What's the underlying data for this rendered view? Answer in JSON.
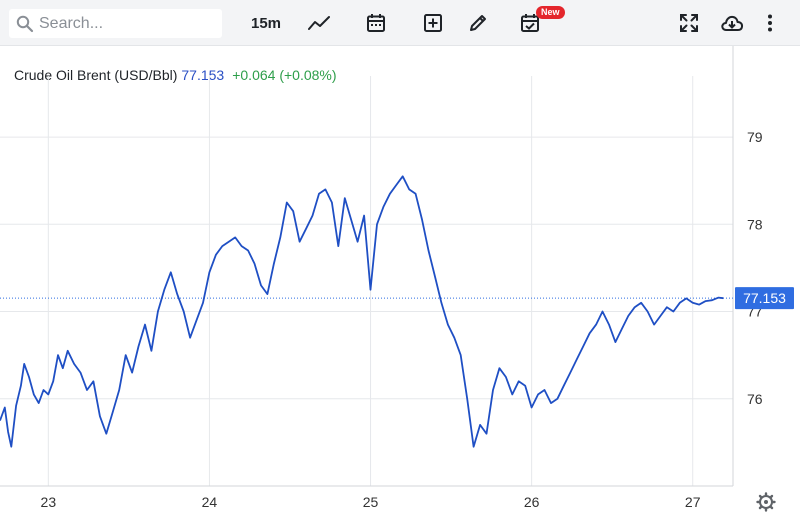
{
  "toolbar": {
    "search_placeholder": "Search...",
    "interval": "15m",
    "new_badge": "New",
    "icons": [
      "search-icon",
      "line-chart-icon",
      "calendar-icon",
      "add-box-icon",
      "pencil-icon",
      "calendar-check-icon",
      "fullscreen-icon",
      "cloud-download-icon",
      "more-vertical-icon"
    ]
  },
  "legend": {
    "symbol": "Crude Oil Brent (USD/Bbl)",
    "price": "77.153",
    "change": "+0.064 (+0.08%)"
  },
  "colors": {
    "line": "#1f4fc4",
    "price_tag": "#2f6de1",
    "change": "#2e9e4a",
    "grid": "#e6e8eb"
  },
  "chart_data": {
    "type": "line",
    "title": "Crude Oil Brent (USD/Bbl)",
    "xlabel": "",
    "ylabel": "",
    "ylim": [
      75.0,
      79.7
    ],
    "xlim": [
      22.7,
      27.25
    ],
    "grid": true,
    "y_axis_position": "right",
    "x_ticks": [
      {
        "value": 23,
        "label": "23"
      },
      {
        "value": 24,
        "label": "24"
      },
      {
        "value": 25,
        "label": "25"
      },
      {
        "value": 26,
        "label": "26"
      },
      {
        "value": 27,
        "label": "27"
      }
    ],
    "y_ticks": [
      {
        "value": 76,
        "label": "76"
      },
      {
        "value": 77,
        "label": "77"
      },
      {
        "value": 78,
        "label": "78"
      },
      {
        "value": 79,
        "label": "79"
      }
    ],
    "last_price": {
      "value": 77.153,
      "label": "77.153"
    },
    "series": [
      {
        "name": "Crude Oil Brent",
        "x": [
          22.7,
          22.73,
          22.75,
          22.77,
          22.8,
          22.83,
          22.85,
          22.88,
          22.91,
          22.94,
          22.97,
          23.0,
          23.03,
          23.06,
          23.09,
          23.12,
          23.16,
          23.2,
          23.24,
          23.28,
          23.32,
          23.36,
          23.4,
          23.44,
          23.48,
          23.52,
          23.56,
          23.6,
          23.64,
          23.68,
          23.72,
          23.76,
          23.8,
          23.84,
          23.88,
          23.92,
          23.96,
          24.0,
          24.04,
          24.08,
          24.12,
          24.16,
          24.2,
          24.24,
          24.28,
          24.32,
          24.36,
          24.4,
          24.44,
          24.48,
          24.52,
          24.56,
          24.6,
          24.64,
          24.68,
          24.72,
          24.76,
          24.8,
          24.84,
          24.88,
          24.92,
          24.96,
          25.0,
          25.04,
          25.08,
          25.12,
          25.16,
          25.2,
          25.24,
          25.28,
          25.32,
          25.36,
          25.4,
          25.44,
          25.48,
          25.52,
          25.56,
          25.6,
          25.64,
          25.68,
          25.72,
          25.76,
          25.8,
          25.84,
          25.88,
          25.92,
          25.96,
          26.0,
          26.04,
          26.08,
          26.12,
          26.16,
          26.2,
          26.24,
          26.28,
          26.32,
          26.36,
          26.4,
          26.44,
          26.48,
          26.52,
          26.56,
          26.6,
          26.64,
          26.68,
          26.72,
          26.76,
          26.8,
          26.84,
          26.88,
          26.92,
          26.96,
          27.0,
          27.04,
          27.08,
          27.12,
          27.16,
          27.19
        ],
        "values": [
          75.75,
          75.9,
          75.62,
          75.45,
          75.92,
          76.15,
          76.4,
          76.25,
          76.05,
          75.95,
          76.1,
          76.05,
          76.2,
          76.5,
          76.35,
          76.55,
          76.4,
          76.3,
          76.1,
          76.2,
          75.8,
          75.6,
          75.85,
          76.1,
          76.5,
          76.3,
          76.6,
          76.85,
          76.55,
          77.0,
          77.25,
          77.45,
          77.2,
          77.0,
          76.7,
          76.9,
          77.1,
          77.45,
          77.65,
          77.75,
          77.8,
          77.85,
          77.75,
          77.7,
          77.55,
          77.3,
          77.2,
          77.55,
          77.85,
          78.25,
          78.15,
          77.8,
          77.95,
          78.1,
          78.35,
          78.4,
          78.25,
          77.75,
          78.3,
          78.05,
          77.8,
          78.1,
          77.25,
          78.0,
          78.2,
          78.35,
          78.45,
          78.55,
          78.4,
          78.35,
          78.05,
          77.7,
          77.4,
          77.1,
          76.85,
          76.7,
          76.5,
          76.0,
          75.45,
          75.7,
          75.6,
          76.1,
          76.35,
          76.25,
          76.05,
          76.2,
          76.15,
          75.9,
          76.05,
          76.1,
          75.95,
          76.0,
          76.15,
          76.3,
          76.45,
          76.6,
          76.75,
          76.85,
          77.0,
          76.85,
          76.65,
          76.8,
          76.95,
          77.05,
          77.1,
          77.0,
          76.85,
          76.95,
          77.05,
          77.0,
          77.1,
          77.15,
          77.1,
          77.08,
          77.12,
          77.13,
          77.16,
          77.153
        ]
      }
    ]
  }
}
